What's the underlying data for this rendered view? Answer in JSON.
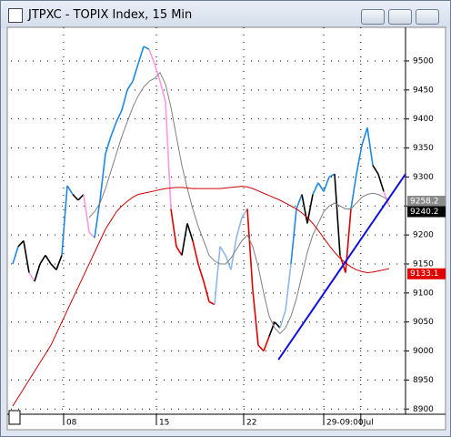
{
  "chart_data": {
    "type": "line",
    "title": "JTPXC - TOPIX Index, 15 Min",
    "xlim": [
      -0.33,
      72
    ],
    "xticks": [
      {
        "value": 9.33,
        "label": "08"
      },
      {
        "value": 26.33,
        "label": "15"
      },
      {
        "value": 42.33,
        "label": "22"
      },
      {
        "value": 57.0,
        "label": "29-09:00"
      },
      {
        "value": 63.8,
        "label": "Jul"
      }
    ],
    "ylim": [
      8891,
      9558
    ],
    "yticks": [
      8900,
      8950,
      9000,
      9050,
      9100,
      9150,
      9200,
      9250,
      9300,
      9350,
      9400,
      9450,
      9500
    ],
    "grid": true,
    "series": [
      {
        "values": [
          9150,
          9180,
          9190,
          9135,
          9120,
          9150,
          9165,
          9150,
          9140,
          9165,
          9285,
          9270,
          9260,
          9270,
          9205,
          9195,
          9260,
          9340,
          9370,
          9395,
          9415,
          9450,
          9465,
          9495,
          9525,
          9520,
          9495,
          9465,
          9430,
          9245,
          9180,
          9165,
          9220,
          9190,
          9150,
          9120,
          9085,
          9080,
          9180,
          9165,
          9140,
          9195,
          9230,
          9245,
          9105,
          9010,
          9000,
          9025,
          9050,
          9040,
          9070,
          9150,
          9245,
          9270,
          9220,
          9270,
          9290,
          9275,
          9300,
          9305,
          9165,
          9135,
          9245,
          9305,
          9355,
          9385,
          9320,
          9305,
          9275,
          9250
        ],
        "colors": [
          "#000000",
          "#1e88e5",
          "#000000",
          "#000000",
          "#ff99dd",
          "#000000",
          "#000000",
          "#000000",
          "#000000",
          "#000000",
          "#1e88e5",
          "#1e88e5",
          "#000000",
          "#000000",
          "#ff99dd",
          "#ff99dd",
          "#1e88e5",
          "#1e88e5",
          "#1e88e5",
          "#1e88e5",
          "#1e88e5",
          "#1e88e5",
          "#1e88e5",
          "#1e88e5",
          "#1e88e5",
          "#1e88e5",
          "#ff99dd",
          "#ff99dd",
          "#ff99dd",
          "#ff99dd",
          "#e00000",
          "#e00000",
          "#000000",
          "#000000",
          "#e00000",
          "#e00000",
          "#e00000",
          "#e00000",
          "#8fb8e8",
          "#8fb8e8",
          "#8fb8e8",
          "#8fb8e8",
          "#8fb8e8",
          "#8fb8e8",
          "#e00000",
          "#e00000",
          "#e00000",
          "#e00000",
          "#000000",
          "#000000",
          "#8fb8e8",
          "#8fb8e8",
          "#1e88e5",
          "#1e88e5",
          "#000000",
          "#000000",
          "#1e88e5",
          "#1e88e5",
          "#1e88e5",
          "#1e88e5",
          "#000000",
          "#e00000",
          "#e00000",
          "#1e88e5",
          "#1e88e5",
          "#1e88e5",
          "#1e88e5",
          "#000000",
          "#000000",
          "#ff99dd"
        ]
      },
      {
        "color": "#808080",
        "values": [
          null,
          null,
          null,
          null,
          null,
          null,
          null,
          null,
          null,
          null,
          null,
          null,
          null,
          null,
          9230,
          9240,
          9255,
          9280,
          9310,
          9340,
          9370,
          9395,
          9420,
          9440,
          9455,
          9465,
          9470,
          9480,
          9460,
          9420,
          9370,
          9320,
          9280,
          9245,
          9215,
          9190,
          9165,
          9155,
          9150,
          9150,
          9160,
          9175,
          9190,
          9200,
          9180,
          9145,
          9100,
          9060,
          9040,
          9030,
          9040,
          9060,
          9090,
          9130,
          9170,
          9200,
          9220,
          9240,
          9250,
          9255,
          9250,
          9245,
          9245,
          9255,
          9265,
          9270,
          9272,
          9270,
          9265,
          9260
        ]
      },
      {
        "color": "#d00000",
        "values": [
          8905,
          8920,
          8935,
          8950,
          8965,
          8980,
          8995,
          9010,
          9030,
          9050,
          9070,
          9090,
          9110,
          9130,
          9150,
          9170,
          9190,
          9210,
          9225,
          9240,
          9250,
          9258,
          9265,
          9270,
          9272,
          9274,
          9276,
          9278,
          9280,
          9281,
          9282,
          9282,
          9281,
          9280,
          9280,
          9280,
          9280,
          9280,
          9280,
          9281,
          9282,
          9283,
          9284,
          9283,
          9280,
          9276,
          9272,
          9268,
          9264,
          9260,
          9255,
          9250,
          9245,
          9238,
          9230,
          9220,
          9208,
          9195,
          9182,
          9170,
          9160,
          9152,
          9145,
          9140,
          9137,
          9135,
          9136,
          9138,
          9140,
          9142
        ]
      }
    ],
    "trendline": {
      "x": [
        48.7,
        72
      ],
      "values": [
        8985,
        9305
      ],
      "color": "#1010e0"
    },
    "last_values": [
      {
        "value": 9258.2,
        "color": "#8a8a8a"
      },
      {
        "value": 9240.2,
        "color": "#000000"
      },
      {
        "value": 9133.1,
        "color": "#e00000"
      }
    ]
  }
}
